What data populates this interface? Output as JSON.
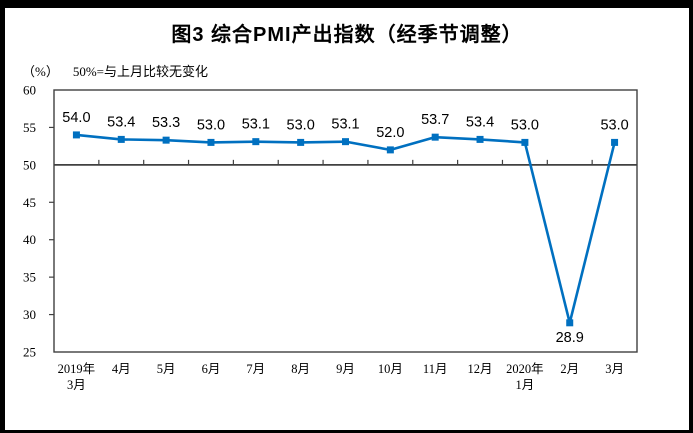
{
  "figure": {
    "title": "图3 综合PMI产出指数（经季节调整）",
    "y_axis_unit": "（%）",
    "reference_note": "50%=与上月比较无变化"
  },
  "chart_data": {
    "type": "line",
    "title": "图3 综合PMI产出指数（经季节调整）",
    "categories": [
      [
        "2019年",
        "3月"
      ],
      [
        "4月"
      ],
      [
        "5月"
      ],
      [
        "6月"
      ],
      [
        "7月"
      ],
      [
        "8月"
      ],
      [
        "9月"
      ],
      [
        "10月"
      ],
      [
        "11月"
      ],
      [
        "12月"
      ],
      [
        "2020年",
        "1月"
      ],
      [
        "2月"
      ],
      [
        "3月"
      ]
    ],
    "series": [
      {
        "name": "综合PMI产出指数",
        "values": [
          54.0,
          53.4,
          53.3,
          53.0,
          53.1,
          53.0,
          53.1,
          52.0,
          53.7,
          53.4,
          53.0,
          28.9,
          53.0
        ]
      }
    ],
    "y_unit": "（%）",
    "note": "50%=与上月比较无变化",
    "ylim": [
      25,
      60
    ],
    "yticks": [
      60,
      55,
      50,
      45,
      40,
      35,
      30,
      25
    ],
    "reference_line": 50,
    "grid": false,
    "legend": false,
    "line_color": "#0070C0",
    "axis_color": "#404040"
  }
}
